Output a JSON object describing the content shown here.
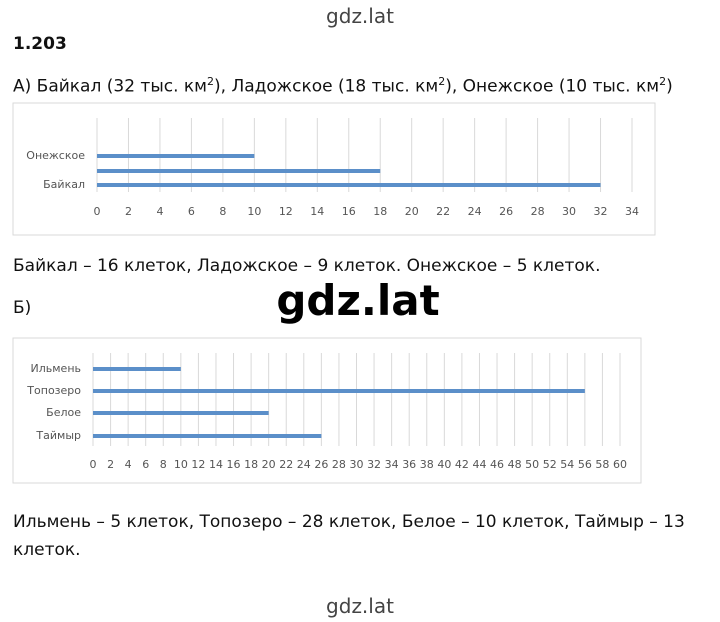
{
  "watermark_top": "gdz.lat",
  "header": {
    "title": "1.203"
  },
  "part_a": {
    "statement": [
      "А) Байкал (32 тыс. км",
      "2",
      "), Ладожское (18 тыс. км",
      "2",
      "), Онежское (10 тыс. км",
      "2",
      ")"
    ],
    "answer": "Байкал – 16 клеток, Ладожское – 9 клеток. Онежское – 5 клеток."
  },
  "part_b": {
    "label": "Б)",
    "answer": "Ильмень – 5 клеток, Топозеро – 28 клеток, Белое – 10 клеток, Таймыр – 13 клеток."
  },
  "watermark_middle": "gdz.lat",
  "watermark_bottom": "gdz.lat",
  "chart_data": [
    {
      "type": "hbar",
      "categories": [
        "Онежское",
        null,
        "Байкал"
      ],
      "values": [
        10,
        18,
        32
      ],
      "color": "#5b8fc9",
      "xlim": [
        0,
        34
      ],
      "xticks": [
        0,
        2,
        4,
        6,
        8,
        10,
        12,
        14,
        16,
        18,
        20,
        22,
        24,
        26,
        28,
        30,
        32,
        34
      ],
      "grid": true
    },
    {
      "type": "hbar",
      "categories": [
        "Ильмень",
        "Топозеро",
        "Белое",
        "Таймыр"
      ],
      "values": [
        10,
        56,
        20,
        26
      ],
      "color": "#5b8fc9",
      "xlim": [
        0,
        60
      ],
      "xticks": [
        0,
        2,
        4,
        6,
        8,
        10,
        12,
        14,
        16,
        18,
        20,
        22,
        24,
        26,
        28,
        30,
        32,
        34,
        36,
        38,
        40,
        42,
        44,
        46,
        48,
        50,
        52,
        54,
        56,
        58,
        60
      ],
      "grid": true
    }
  ]
}
